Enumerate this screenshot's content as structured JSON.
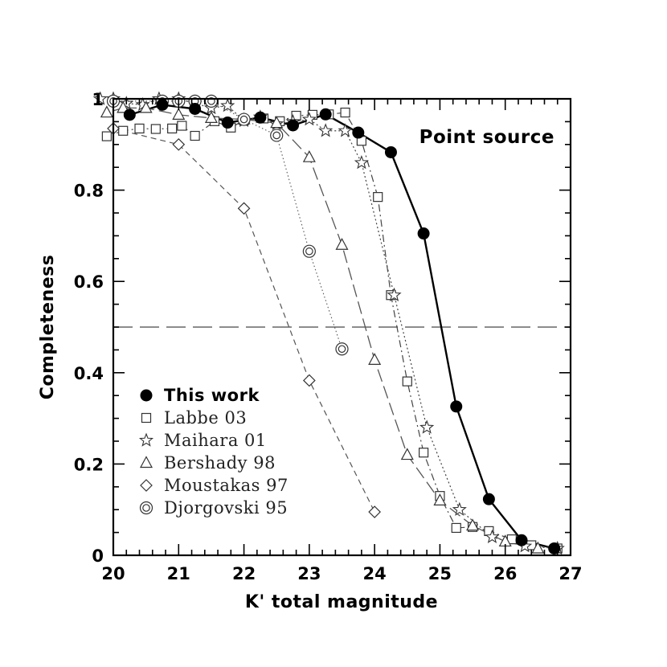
{
  "chart_data": {
    "type": "line",
    "title": "",
    "xlabel": "K' total magnitude",
    "ylabel": "Completeness",
    "xlim": [
      20,
      27
    ],
    "ylim": [
      0,
      1
    ],
    "xticks": [
      20,
      21,
      22,
      23,
      24,
      25,
      26,
      27
    ],
    "yticks": [
      0,
      0.2,
      0.4,
      0.6,
      0.8,
      1
    ],
    "xtick_labels": [
      "20",
      "21",
      "22",
      "23",
      "24",
      "25",
      "26",
      "27"
    ],
    "ytick_labels": [
      "0",
      "0.2",
      "0.4",
      "0.6",
      "0.8",
      "1"
    ],
    "reference_line": {
      "y": 0.5,
      "style": "long-dash"
    },
    "annotation": "Point source",
    "legend_position": "bottom-left",
    "series": [
      {
        "name": "This work",
        "marker": "filled-circle",
        "line": "solid-thick",
        "x": [
          20.25,
          20.75,
          21.25,
          21.75,
          22.25,
          22.75,
          23.25,
          23.75,
          24.25,
          24.75,
          25.25,
          25.75,
          26.25,
          26.75
        ],
        "y": [
          0.965,
          0.987,
          0.978,
          0.948,
          0.959,
          0.942,
          0.966,
          0.926,
          0.883,
          0.705,
          0.326,
          0.123,
          0.033,
          0.015
        ]
      },
      {
        "name": "Labbe 03",
        "marker": "square",
        "line": "dash-dot",
        "x": [
          19.9,
          20.15,
          20.4,
          20.65,
          20.9,
          21.05,
          21.25,
          21.55,
          21.8,
          22.0,
          22.3,
          22.55,
          22.8,
          23.05,
          23.3,
          23.55,
          23.8,
          24.05,
          24.25,
          24.5,
          24.75,
          25.0,
          25.25,
          25.5,
          25.75,
          26.1,
          26.4,
          26.8
        ],
        "y": [
          0.918,
          0.93,
          0.935,
          0.934,
          0.935,
          0.941,
          0.919,
          0.951,
          0.937,
          0.953,
          0.957,
          0.951,
          0.963,
          0.965,
          0.966,
          0.97,
          0.908,
          0.785,
          0.57,
          0.381,
          0.225,
          0.13,
          0.06,
          0.062,
          0.053,
          0.035,
          0.022,
          0.015
        ]
      },
      {
        "name": "Maihara 01",
        "marker": "star",
        "line": "dotted",
        "x": [
          19.8,
          20.0,
          20.2,
          20.45,
          20.7,
          21.0,
          21.25,
          21.5,
          21.75,
          22.0,
          22.25,
          22.5,
          22.75,
          23.0,
          23.25,
          23.55,
          23.8,
          24.3,
          24.8,
          25.3,
          25.8,
          26.3,
          26.8
        ],
        "y": [
          1.0,
          1.0,
          0.99,
          0.987,
          1.0,
          1.0,
          0.99,
          0.98,
          0.985,
          0.952,
          0.96,
          0.945,
          0.95,
          0.955,
          0.93,
          0.93,
          0.86,
          0.57,
          0.28,
          0.1,
          0.04,
          0.02,
          0.015
        ]
      },
      {
        "name": "Bershady 98",
        "marker": "triangle",
        "line": "long-dash",
        "x": [
          19.9,
          20.15,
          20.5,
          21.0,
          21.5,
          22.0,
          22.5,
          23.0,
          23.5,
          24.0,
          24.5,
          25.0,
          25.5,
          26.0,
          26.5
        ],
        "y": [
          0.97,
          0.98,
          0.98,
          0.965,
          0.958,
          0.955,
          0.947,
          0.872,
          0.68,
          0.428,
          0.22,
          0.12,
          0.065,
          0.03,
          0.015
        ]
      },
      {
        "name": "Moustakas 97",
        "marker": "diamond",
        "line": "short-dash",
        "x": [
          20.0,
          21.0,
          22.0,
          23.0,
          24.0
        ],
        "y": [
          0.935,
          0.9,
          0.76,
          0.383,
          0.095
        ]
      },
      {
        "name": "Djorgovski 95",
        "marker": "double-circle",
        "line": "dotted-fine",
        "x": [
          20.0,
          20.75,
          21.0,
          21.25,
          21.5,
          22.0,
          22.5,
          23.0,
          23.5
        ],
        "y": [
          0.995,
          0.995,
          0.995,
          0.995,
          0.995,
          0.955,
          0.92,
          0.666,
          0.452
        ]
      }
    ]
  }
}
